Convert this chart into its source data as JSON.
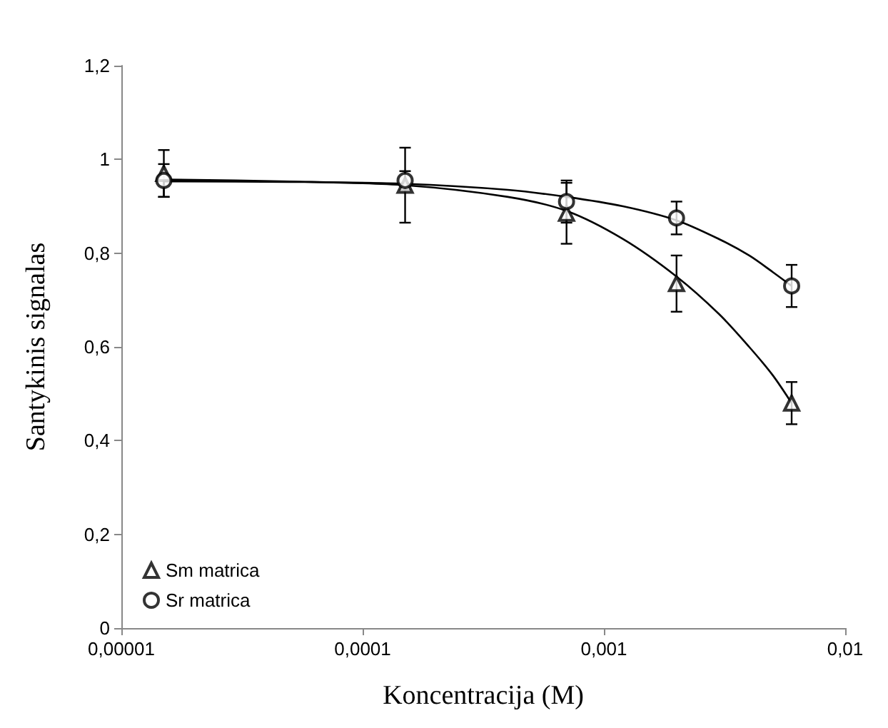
{
  "chart_data": {
    "type": "scatter",
    "xlabel": "Koncentracija (M)",
    "ylabel": "Santykinis signalas",
    "log": "x",
    "grid": false,
    "legend": "bottom left",
    "xlim": [
      1e-05,
      0.01
    ],
    "xticks": [
      {
        "value": 1e-05,
        "label": "0,00001"
      },
      {
        "value": 0.0001,
        "label": "0,0001"
      },
      {
        "value": 0.001,
        "label": "0,001"
      },
      {
        "value": 0.01,
        "label": "0,01"
      }
    ],
    "ylim": [
      0,
      1.2
    ],
    "yticks": [
      {
        "value": 0,
        "label": "0"
      },
      {
        "value": 0.2,
        "label": "0,2"
      },
      {
        "value": 0.4,
        "label": "0,4"
      },
      {
        "value": 0.6,
        "label": "0,6"
      },
      {
        "value": 0.8,
        "label": "0,8"
      },
      {
        "value": 1,
        "label": "1"
      },
      {
        "value": 1.2,
        "label": "1,2"
      }
    ],
    "series": [
      {
        "name": "Sm matrica",
        "marker": "triangle",
        "color": "#000000",
        "x": [
          1.5e-05,
          0.00015,
          0.0007,
          0.002,
          0.006
        ],
        "values": [
          0.97,
          0.945,
          0.885,
          0.735,
          0.48
        ],
        "errors": [
          0.05,
          0.08,
          0.065,
          0.06,
          0.045
        ]
      },
      {
        "name": "Sr matrica",
        "marker": "circle",
        "color": "#000000",
        "x": [
          1.5e-05,
          0.00015,
          0.0007,
          0.002,
          0.006
        ],
        "values": [
          0.955,
          0.955,
          0.91,
          0.875,
          0.73
        ],
        "errors": [
          0.035,
          0.02,
          0.045,
          0.035,
          0.045
        ]
      },
      {
        "type": "line",
        "marker": "none",
        "color": "#000000",
        "x": [
          1.5e-05,
          5e-05,
          0.00015,
          0.0004,
          0.0007,
          0.0012,
          0.002,
          0.003,
          0.004,
          0.005,
          0.006
        ],
        "values": [
          0.957,
          0.953,
          0.945,
          0.92,
          0.89,
          0.83,
          0.75,
          0.67,
          0.6,
          0.54,
          0.48
        ]
      },
      {
        "type": "line",
        "marker": "none",
        "color": "#000000",
        "x": [
          1.5e-05,
          5e-05,
          0.00015,
          0.0004,
          0.0007,
          0.0012,
          0.002,
          0.003,
          0.004,
          0.005,
          0.006
        ],
        "values": [
          0.953,
          0.952,
          0.948,
          0.935,
          0.92,
          0.9,
          0.87,
          0.83,
          0.795,
          0.76,
          0.73
        ]
      }
    ]
  }
}
